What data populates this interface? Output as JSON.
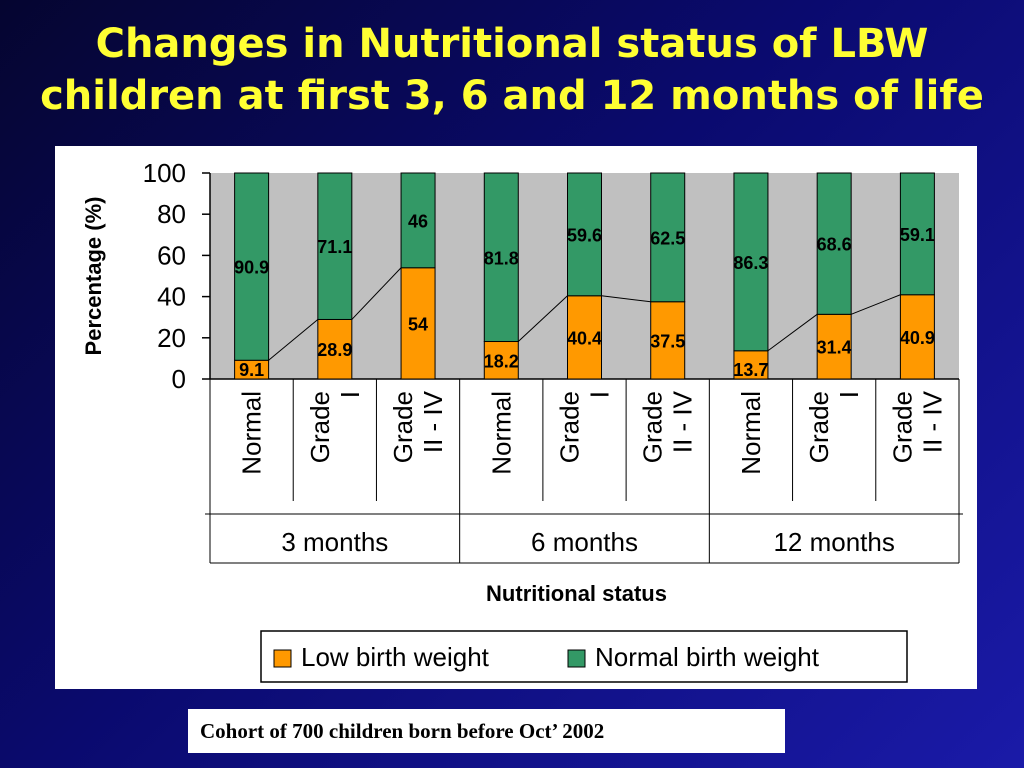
{
  "slide": {
    "title_line1": "Changes in Nutritional status of LBW",
    "title_line2": "children  at first 3, 6 and 12 months of life",
    "footnote": "Cohort of 700 children born before Oct’ 2002"
  },
  "chart_data": {
    "type": "bar",
    "stacked": true,
    "percent": true,
    "ylabel": "Percentage (%)",
    "xlabel": "Nutritional status",
    "ylim": [
      0,
      100
    ],
    "yticks": [
      0,
      20,
      40,
      60,
      80,
      100
    ],
    "grid": false,
    "legend_position": "bottom",
    "groups": [
      {
        "label": "3 months",
        "categories": [
          [
            "Normal"
          ],
          [
            "Grade",
            "I"
          ],
          [
            "Grade",
            "II - IV"
          ]
        ]
      },
      {
        "label": "6 months",
        "categories": [
          [
            "Normal"
          ],
          [
            "Grade",
            "I"
          ],
          [
            "Grade",
            "II - IV"
          ]
        ]
      },
      {
        "label": "12 months",
        "categories": [
          [
            "Normal"
          ],
          [
            "Grade",
            "I"
          ],
          [
            "Grade",
            "II - IV"
          ]
        ]
      }
    ],
    "series": [
      {
        "name": "Low birth weight",
        "color": "#ff9900",
        "values": [
          9.1,
          28.9,
          54,
          18.2,
          40.4,
          37.5,
          13.7,
          31.4,
          40.9
        ],
        "labels": [
          "9.1",
          "28.9",
          "54",
          "18.2",
          "40.4",
          "37.5",
          "13.7",
          "31.4",
          "40.9"
        ]
      },
      {
        "name": "Normal birth weight",
        "color": "#339966",
        "values": [
          90.9,
          71.1,
          46,
          81.8,
          59.6,
          62.5,
          86.3,
          68.6,
          59.1
        ],
        "labels": [
          "90.9",
          "71.1",
          "46",
          "81.8",
          "59.6",
          "62.5",
          "86.3",
          "68.6",
          "59.1"
        ]
      }
    ],
    "plot_background": "#c0c0c0",
    "series_lines": true
  }
}
